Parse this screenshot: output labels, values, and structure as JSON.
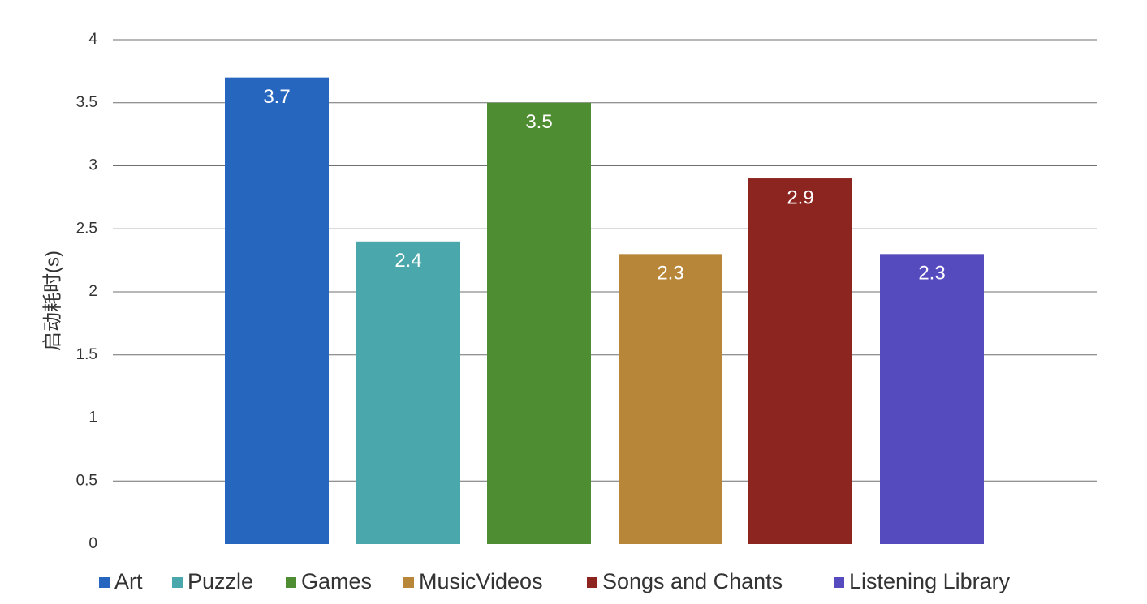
{
  "chart_data": {
    "type": "bar",
    "title": "",
    "xlabel": "",
    "ylabel": "启动耗时(s)",
    "ylim": [
      0,
      4
    ],
    "yticks": [
      "0",
      "0.5",
      "1",
      "1.5",
      "2",
      "2.5",
      "3",
      "3.5",
      "4"
    ],
    "grid": true,
    "legend_position": "bottom",
    "categories": [
      "Art",
      "Puzzle",
      "Games",
      "MusicVideos",
      "Songs and Chants",
      "Listening Library"
    ],
    "values": [
      3.7,
      2.4,
      3.5,
      2.3,
      2.9,
      2.3
    ],
    "data_labels": [
      "3.7",
      "2.4",
      "3.5",
      "2.3",
      "2.9",
      "2.3"
    ],
    "colors": [
      "#2766BE",
      "#4AA8AD",
      "#4E8D31",
      "#B88638",
      "#8C2420",
      "#554BBE"
    ]
  }
}
